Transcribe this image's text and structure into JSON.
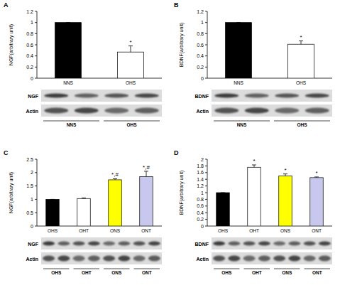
{
  "chart_data": [
    {
      "type": "bar",
      "panel": "A",
      "y_label": "NGF(arbitrary unit)",
      "categories": [
        "NNS",
        "OHS"
      ],
      "values": [
        1,
        0.47
      ],
      "errors": [
        0,
        0.11
      ],
      "colors": [
        "#000000",
        "#ffffff"
      ],
      "ylim": [
        0,
        1.2
      ],
      "yticks": [
        0,
        0.2,
        0.4,
        0.6,
        0.8,
        1,
        1.2
      ],
      "annotations": [
        {
          "category": "OHS",
          "text": "*"
        }
      ],
      "blot": {
        "bands": [
          "NGF",
          "Actin"
        ],
        "lanes": [
          "NNS",
          "OHS"
        ]
      }
    },
    {
      "type": "bar",
      "panel": "B",
      "y_label": "BDNF(arbitrary unit)",
      "categories": [
        "NNS",
        "OHS"
      ],
      "values": [
        1,
        0.61
      ],
      "errors": [
        0,
        0.06
      ],
      "colors": [
        "#000000",
        "#ffffff"
      ],
      "ylim": [
        0,
        1.2
      ],
      "yticks": [
        0,
        0.2,
        0.4,
        0.6,
        0.8,
        1,
        1.2
      ],
      "annotations": [
        {
          "category": "OHS",
          "text": "*"
        }
      ],
      "blot": {
        "bands": [
          "BDNF",
          "Actin"
        ],
        "lanes": [
          "NNS",
          "OHS"
        ]
      }
    },
    {
      "type": "bar",
      "panel": "C",
      "y_label": "NGF(arbitrary unit)",
      "categories": [
        "OHS",
        "OHT",
        "ONS",
        "ONT"
      ],
      "values": [
        1,
        1.03,
        1.73,
        1.85
      ],
      "errors": [
        0,
        0.02,
        0.04,
        0.2
      ],
      "colors": [
        "#000000",
        "#ffffff",
        "#ffff00",
        "#c8c8ee"
      ],
      "ylim": [
        0,
        2.5
      ],
      "yticks": [
        0,
        0.5,
        1,
        1.5,
        2,
        2.5
      ],
      "annotations": [
        {
          "category": "ONS",
          "text": "*,#"
        },
        {
          "category": "ONT",
          "text": "*,#"
        }
      ],
      "blot": {
        "bands": [
          "NGF",
          "Actin"
        ],
        "lanes": [
          "OHS",
          "OHT",
          "ONS",
          "ONT"
        ]
      }
    },
    {
      "type": "bar",
      "panel": "D",
      "y_label": "BDNF(arbitrary unit)",
      "categories": [
        "OHS",
        "OHT",
        "ONS",
        "ONT"
      ],
      "values": [
        1,
        1.76,
        1.5,
        1.45
      ],
      "errors": [
        0,
        0.07,
        0.06,
        0.02
      ],
      "colors": [
        "#000000",
        "#ffffff",
        "#ffff00",
        "#c8c8ee"
      ],
      "ylim": [
        0,
        2
      ],
      "yticks": [
        0,
        0.2,
        0.4,
        0.6,
        0.8,
        1,
        1.2,
        1.4,
        1.6,
        1.8,
        2
      ],
      "annotations": [
        {
          "category": "OHT",
          "text": "*"
        },
        {
          "category": "ONS",
          "text": "*"
        },
        {
          "category": "ONT",
          "text": "*"
        }
      ],
      "blot": {
        "bands": [
          "BDNF",
          "Actin"
        ],
        "lanes": [
          "OHS",
          "OHT",
          "ONS",
          "ONT"
        ]
      }
    }
  ]
}
